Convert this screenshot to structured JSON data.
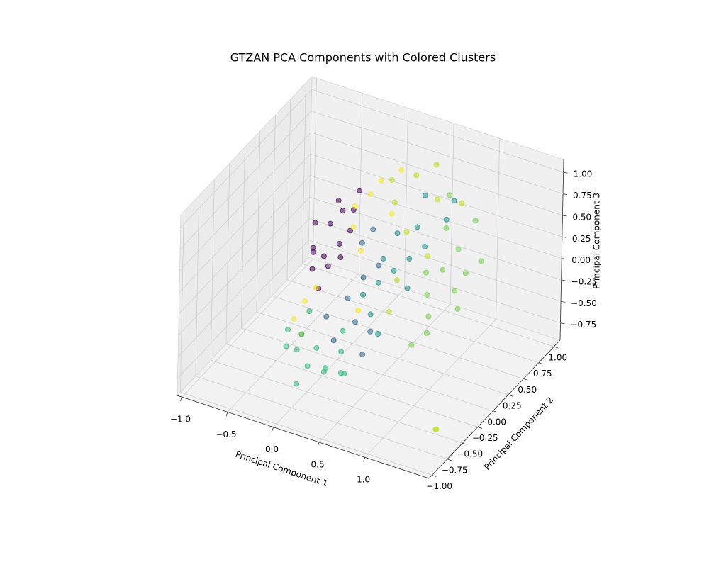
{
  "chart_data": {
    "type": "scatter3d",
    "title": "GTZAN PCA Components with Colored Clusters",
    "x_label": "Principal Component 1",
    "y_label": "Principal Component 2",
    "z_label": "Principal Component 3",
    "xlim": [
      -1.05,
      1.7
    ],
    "ylim": [
      -1.05,
      1.1
    ],
    "zlim": [
      -0.95,
      1.15
    ],
    "xticks": [
      {
        "value": -1.0,
        "label": "−1.0"
      },
      {
        "value": -0.5,
        "label": "−0.5"
      },
      {
        "value": 0.0,
        "label": "0.0"
      },
      {
        "value": 0.5,
        "label": "0.5"
      },
      {
        "value": 1.0,
        "label": "1.0"
      }
    ],
    "yticks": [
      {
        "value": -1.0,
        "label": "−1.00"
      },
      {
        "value": -0.75,
        "label": "−0.75"
      },
      {
        "value": -0.5,
        "label": "−0.50"
      },
      {
        "value": -0.25,
        "label": "−0.25"
      },
      {
        "value": 0.0,
        "label": "0.00"
      },
      {
        "value": 0.25,
        "label": "0.25"
      },
      {
        "value": 0.5,
        "label": "0.50"
      },
      {
        "value": 0.75,
        "label": "0.75"
      },
      {
        "value": 1.0,
        "label": "1.00"
      }
    ],
    "zticks": [
      {
        "value": -0.75,
        "label": "−0.75"
      },
      {
        "value": -0.5,
        "label": "−0.50"
      },
      {
        "value": -0.25,
        "label": "−0.25"
      },
      {
        "value": 0.0,
        "label": "0.00"
      },
      {
        "value": 0.25,
        "label": "0.25"
      },
      {
        "value": 0.5,
        "label": "0.50"
      },
      {
        "value": 0.75,
        "label": "0.75"
      },
      {
        "value": 1.0,
        "label": "1.00"
      }
    ],
    "grid": true,
    "series": [
      {
        "color": "#440154",
        "x": [
          -0.35,
          -0.3,
          -0.25,
          -0.2,
          -0.32,
          -0.15,
          -0.28,
          -0.1,
          -0.22,
          -0.4,
          -0.05,
          -0.18,
          -0.26,
          -0.12,
          -0.33
        ],
        "y": [
          0.1,
          0.3,
          0.2,
          0.35,
          0.05,
          0.25,
          0.4,
          0.15,
          0.0,
          0.2,
          0.3,
          0.45,
          -0.05,
          0.5,
          0.25
        ],
        "z": [
          0.1,
          0.3,
          -0.1,
          0.45,
          0.2,
          0.0,
          0.5,
          0.25,
          -0.2,
          0.35,
          0.55,
          0.15,
          0.05,
          0.6,
          -0.05
        ]
      },
      {
        "color": "#fde725",
        "x": [
          -0.3,
          -0.1,
          0.0,
          0.1,
          -0.2,
          0.05,
          -0.25,
          0.15,
          -0.05,
          0.2,
          -0.35,
          0.3
        ],
        "y": [
          -0.1,
          0.4,
          0.5,
          0.2,
          -0.3,
          0.6,
          0.0,
          0.1,
          0.3,
          0.7,
          -0.2,
          0.4
        ],
        "z": [
          -0.3,
          0.5,
          0.6,
          0.2,
          -0.5,
          0.7,
          -0.2,
          -0.4,
          0.35,
          0.8,
          -0.45,
          0.55
        ]
      },
      {
        "color": "#35b779",
        "x": [
          -0.3,
          -0.2,
          -0.1,
          0.0,
          -0.25,
          0.1,
          -0.15,
          0.2,
          -0.05,
          0.3,
          -0.35,
          0.15,
          0.05,
          0.4
        ],
        "y": [
          -0.4,
          -0.3,
          -0.2,
          -0.5,
          -0.1,
          -0.35,
          -0.45,
          -0.25,
          -0.6,
          -0.4,
          -0.3,
          -0.15,
          -0.3,
          -0.5
        ],
        "z": [
          -0.6,
          -0.5,
          -0.7,
          -0.65,
          -0.4,
          -0.75,
          -0.55,
          -0.6,
          -0.8,
          -0.7,
          -0.5,
          -0.45,
          -0.85,
          -0.6
        ]
      },
      {
        "color": "#21918c",
        "x": [
          0.3,
          0.4,
          0.5,
          0.2,
          0.6,
          0.35,
          0.45,
          0.55,
          0.25,
          0.7,
          0.4,
          0.5,
          0.65,
          0.3
        ],
        "y": [
          0.2,
          0.3,
          0.4,
          0.1,
          0.5,
          0.0,
          0.6,
          0.3,
          0.35,
          0.7,
          0.8,
          -0.1,
          0.9,
          0.5
        ],
        "z": [
          -0.1,
          0.0,
          0.1,
          -0.2,
          0.2,
          -0.3,
          0.3,
          -0.15,
          0.05,
          0.4,
          0.5,
          -0.4,
          0.45,
          0.25
        ]
      },
      {
        "color": "#31688e",
        "x": [
          0.0,
          0.1,
          0.2,
          0.15,
          0.3,
          0.05,
          0.25,
          0.35,
          0.1,
          0.4
        ],
        "y": [
          -0.2,
          0.0,
          0.1,
          -0.3,
          0.2,
          0.3,
          -0.1,
          0.0,
          0.4,
          -0.2
        ],
        "z": [
          -0.3,
          -0.2,
          0.0,
          -0.45,
          0.1,
          0.2,
          -0.35,
          -0.5,
          0.3,
          -0.6
        ]
      },
      {
        "color": "#7ad151",
        "x": [
          0.8,
          0.9,
          1.0,
          0.7,
          1.1,
          0.85,
          0.95,
          0.75,
          1.05,
          0.9,
          0.6,
          1.15,
          0.8,
          0.7
        ],
        "y": [
          0.5,
          0.6,
          0.4,
          0.7,
          0.3,
          0.2,
          0.8,
          0.3,
          0.5,
          0.1,
          0.9,
          0.6,
          0.0,
          0.4
        ],
        "z": [
          0.0,
          0.2,
          -0.1,
          0.3,
          -0.2,
          -0.3,
          0.4,
          0.1,
          0.05,
          -0.4,
          0.5,
          0.15,
          -0.5,
          -0.25
        ]
      },
      {
        "color": "#bddf26",
        "x": [
          0.2,
          0.4,
          0.6,
          0.5,
          0.3,
          0.7,
          0.45,
          0.55,
          1.6,
          1.62,
          0.1,
          0.8
        ],
        "y": [
          0.6,
          0.5,
          0.7,
          0.2,
          0.8,
          0.4,
          0.9,
          0.0,
          -0.8,
          -0.82,
          0.7,
          0.8
        ],
        "z": [
          0.5,
          0.3,
          0.6,
          0.0,
          0.7,
          0.2,
          0.8,
          -0.2,
          -0.6,
          -0.58,
          0.65,
          0.55
        ]
      }
    ]
  }
}
